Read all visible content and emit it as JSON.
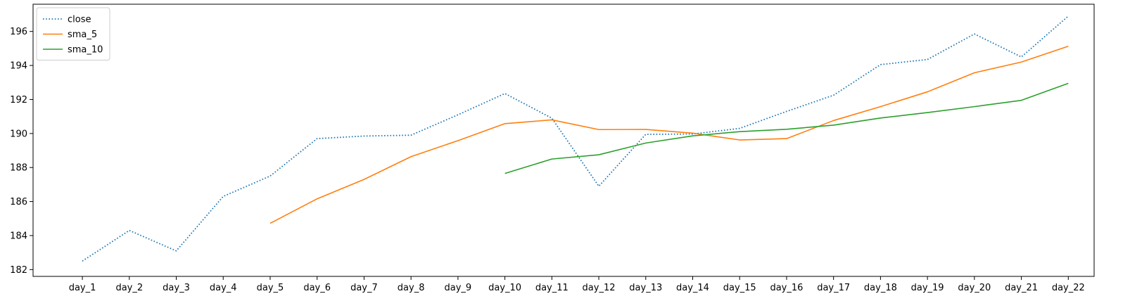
{
  "chart_data": {
    "type": "line",
    "title": "",
    "xlabel": "",
    "ylabel": "",
    "categories": [
      "day_1",
      "day_2",
      "day_3",
      "day_4",
      "day_5",
      "day_6",
      "day_7",
      "day_8",
      "day_9",
      "day_10",
      "day_11",
      "day_12",
      "day_13",
      "day_14",
      "day_15",
      "day_16",
      "day_17",
      "day_18",
      "day_19",
      "day_20",
      "day_21",
      "day_22"
    ],
    "ylim": [
      181.6,
      197.6
    ],
    "yticks": [
      182,
      184,
      186,
      188,
      190,
      192,
      194,
      196
    ],
    "grid": false,
    "legend_position": "top-left",
    "series": [
      {
        "name": "close",
        "color": "#1f77b4",
        "style": "dotted",
        "values": [
          182.5,
          184.3,
          183.1,
          186.3,
          187.5,
          189.7,
          189.85,
          189.9,
          191.1,
          192.35,
          190.9,
          186.9,
          189.95,
          189.97,
          190.3,
          191.3,
          192.25,
          194.05,
          194.35,
          195.85,
          194.5,
          196.9
        ]
      },
      {
        "name": "sma_5",
        "color": "#ff7f0e",
        "style": "solid",
        "values": [
          null,
          null,
          null,
          null,
          184.72,
          186.16,
          187.3,
          188.64,
          189.58,
          190.58,
          190.8,
          190.23,
          190.24,
          190.02,
          189.62,
          189.7,
          190.76,
          191.58,
          192.45,
          193.57,
          194.2,
          195.13
        ]
      },
      {
        "name": "sma_10",
        "color": "#2ca02c",
        "style": "solid",
        "values": [
          null,
          null,
          null,
          null,
          null,
          null,
          null,
          null,
          null,
          187.65,
          188.5,
          188.75,
          189.44,
          189.86,
          190.11,
          190.25,
          190.49,
          190.91,
          191.23,
          191.58,
          191.95,
          192.95
        ]
      }
    ]
  }
}
